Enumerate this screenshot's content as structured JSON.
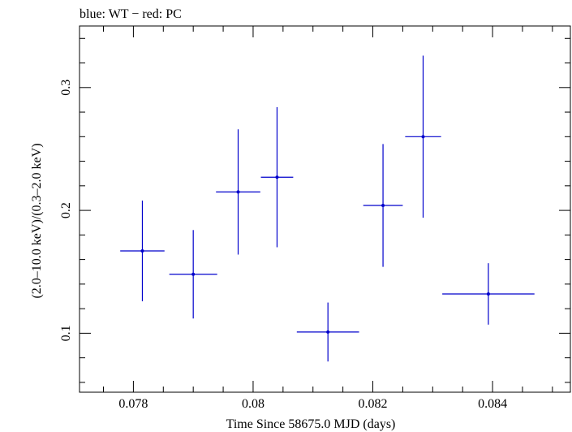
{
  "chart_data": {
    "type": "scatter",
    "title": "blue: WT − red: PC",
    "xlabel": "Time Since 58675.0 MJD (days)",
    "ylabel": "(2.0–10.0 keV)/(0.3–2.0 keV)",
    "xlim": [
      0.0771,
      0.0853
    ],
    "ylim": [
      0.052,
      0.3501
    ],
    "x_ticks": [
      0.078,
      0.08,
      0.082,
      0.084
    ],
    "x_tick_labels": [
      "0.078",
      "0.08",
      "0.082",
      "0.084"
    ],
    "y_ticks": [
      0.1,
      0.2,
      0.3
    ],
    "y_tick_labels": [
      "0.1",
      "0.2",
      "0.3"
    ],
    "grid": false,
    "series": [
      {
        "color": "#0000cc",
        "points": [
          {
            "x": 0.07815,
            "y": 0.167,
            "xerr_lo": 0.00037,
            "xerr_hi": 0.00037,
            "yerr_lo": 0.041,
            "yerr_hi": 0.041
          },
          {
            "x": 0.079,
            "y": 0.148,
            "xerr_lo": 0.0004,
            "xerr_hi": 0.0004,
            "yerr_lo": 0.036,
            "yerr_hi": 0.036
          },
          {
            "x": 0.07975,
            "y": 0.215,
            "xerr_lo": 0.00037,
            "xerr_hi": 0.00037,
            "yerr_lo": 0.051,
            "yerr_hi": 0.051
          },
          {
            "x": 0.0804,
            "y": 0.227,
            "xerr_lo": 0.00027,
            "xerr_hi": 0.00027,
            "yerr_lo": 0.057,
            "yerr_hi": 0.057
          },
          {
            "x": 0.08125,
            "y": 0.101,
            "xerr_lo": 0.00052,
            "xerr_hi": 0.00052,
            "yerr_lo": 0.024,
            "yerr_hi": 0.024
          },
          {
            "x": 0.08217,
            "y": 0.204,
            "xerr_lo": 0.00033,
            "xerr_hi": 0.00033,
            "yerr_lo": 0.05,
            "yerr_hi": 0.05
          },
          {
            "x": 0.08284,
            "y": 0.26,
            "xerr_lo": 0.0003,
            "xerr_hi": 0.0003,
            "yerr_lo": 0.066,
            "yerr_hi": 0.066
          },
          {
            "x": 0.08393,
            "y": 0.132,
            "xerr_lo": 0.00077,
            "xerr_hi": 0.00077,
            "yerr_lo": 0.025,
            "yerr_hi": 0.025
          }
        ]
      }
    ]
  }
}
